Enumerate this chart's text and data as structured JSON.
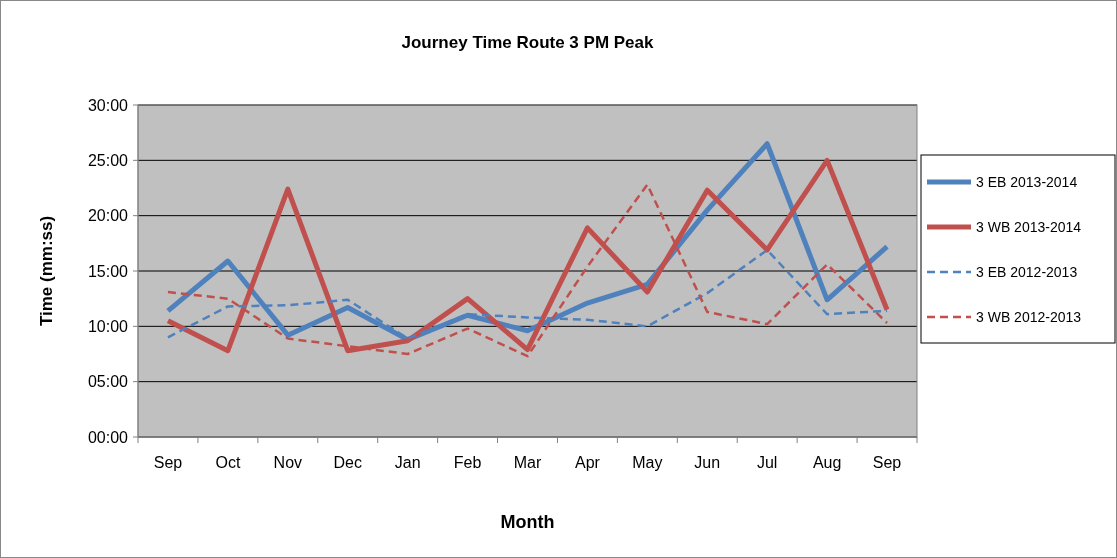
{
  "chart_data": {
    "type": "line",
    "title": "Journey Time Route 3 PM Peak",
    "xlabel": "Month",
    "ylabel": "Time (mm:ss)",
    "categories": [
      "Sep",
      "Oct",
      "Nov",
      "Dec",
      "Jan",
      "Feb",
      "Mar",
      "Apr",
      "May",
      "Jun",
      "Jul",
      "Aug",
      "Sep"
    ],
    "ylim": [
      0,
      30
    ],
    "yticks": [
      {
        "value": 0,
        "label": "00:00"
      },
      {
        "value": 5,
        "label": "05:00"
      },
      {
        "value": 10,
        "label": "10:00"
      },
      {
        "value": 15,
        "label": "15:00"
      },
      {
        "value": 20,
        "label": "20:00"
      },
      {
        "value": 25,
        "label": "25:00"
      },
      {
        "value": 30,
        "label": "30:00"
      }
    ],
    "grid": "y",
    "legend": "right",
    "marker": "none",
    "series": [
      {
        "name": "3 EB 2013-2014",
        "color": "#4f81bd",
        "line_style": "solid",
        "values": [
          11.4,
          15.9,
          9.2,
          11.7,
          8.8,
          11.0,
          9.6,
          12.1,
          13.8,
          20.5,
          26.5,
          12.4,
          17.2
        ]
      },
      {
        "name": "3 WB 2013-2014",
        "color": "#c0504d",
        "line_style": "solid",
        "values": [
          10.5,
          7.8,
          22.4,
          7.8,
          8.7,
          12.5,
          7.9,
          18.9,
          13.1,
          22.3,
          16.9,
          25.0,
          11.5
        ]
      },
      {
        "name": "3 EB 2012-2013",
        "color": "#4f81bd",
        "line_style": "dashed",
        "values": [
          9.0,
          11.8,
          11.9,
          12.4,
          8.9,
          11.1,
          10.8,
          10.6,
          10.0,
          13.0,
          16.9,
          11.1,
          11.4
        ]
      },
      {
        "name": "3 WB 2012-2013",
        "color": "#c0504d",
        "line_style": "dashed",
        "values": [
          13.1,
          12.5,
          8.9,
          8.2,
          7.5,
          9.8,
          7.3,
          15.4,
          22.8,
          11.3,
          10.2,
          15.6,
          10.3
        ]
      }
    ]
  }
}
